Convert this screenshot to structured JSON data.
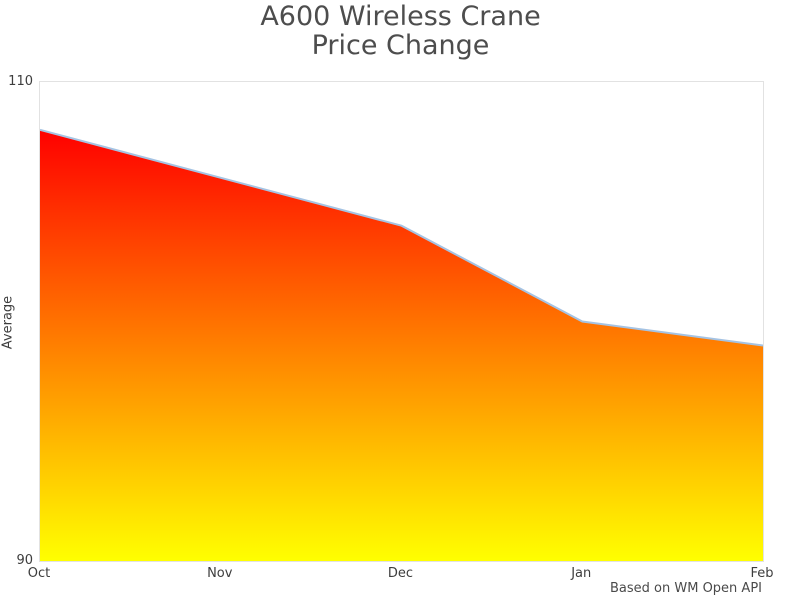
{
  "title": {
    "line1": "A600 Wireless Crane",
    "line2": "Price Change"
  },
  "caption": "Based on WM Open API",
  "colors": {
    "title_text": "#4d4d4d",
    "tick_text": "#3d3d3d",
    "plot_border": "#e2e2e2",
    "line": "#a5c3e3",
    "area_gradient_top": "#ff0000",
    "area_gradient_bottom": "#ffff00"
  },
  "chart_data": {
    "type": "area",
    "title": "A600 Wireless Crane Price Change",
    "x": [
      "Oct",
      "Nov",
      "Dec",
      "Jan",
      "Feb"
    ],
    "values": [
      108,
      106,
      104,
      100,
      99
    ],
    "xlabel": "",
    "ylabel": "Average",
    "ylim": [
      90,
      110
    ],
    "yticks": [
      90,
      110
    ],
    "grid": false,
    "legend": false,
    "fill_gradient": [
      "#ff0000",
      "#ffff00"
    ],
    "line_color": "#a5c3e3",
    "caption": "Based on WM Open API"
  }
}
